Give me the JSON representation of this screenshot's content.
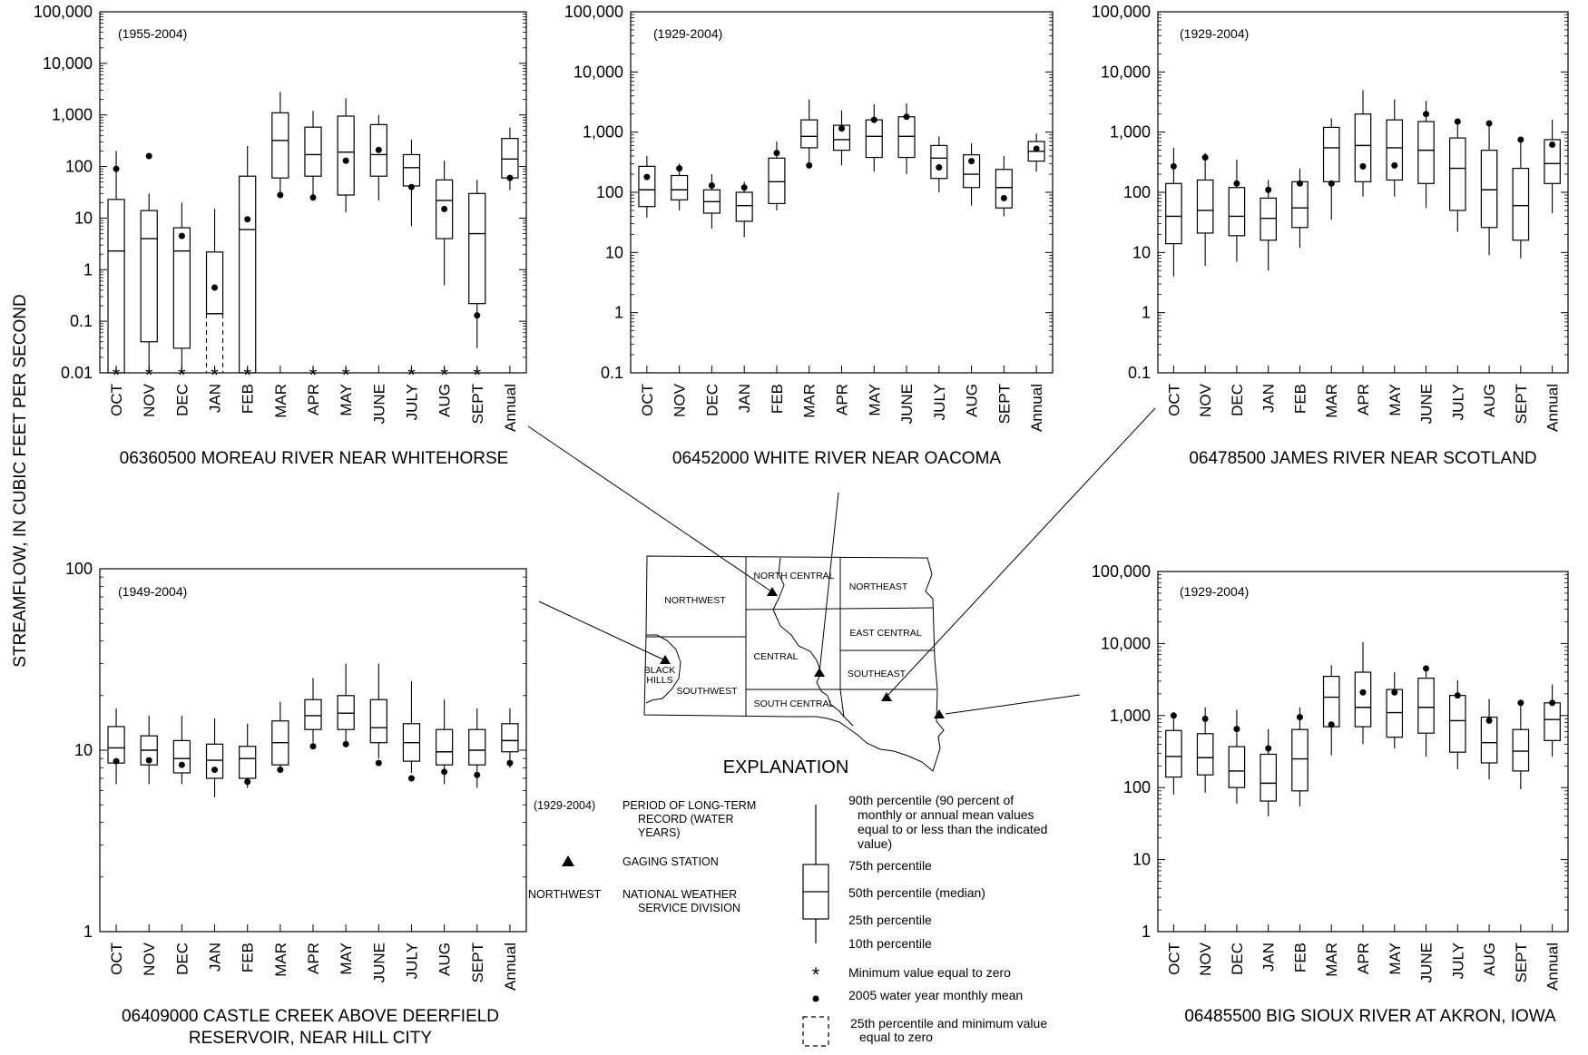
{
  "figure": {
    "y_axis_label": "STREAMFLOW, IN CUBIC FEET PER SECOND",
    "month_labels": [
      "OCT",
      "NOV",
      "DEC",
      "JAN",
      "FEB",
      "MAR",
      "APR",
      "MAY",
      "JUNE",
      "JULY",
      "AUG",
      "SEPT",
      "Annual"
    ]
  },
  "chart_data": [
    {
      "type": "box",
      "id": "moreau",
      "title": "06360500 MOREAU RIVER NEAR WHITEHORSE",
      "period": "(1955-2004)",
      "yscale": "log",
      "ylim": [
        0.01,
        100000
      ],
      "yticks": [
        0.01,
        0.1,
        1,
        10,
        100,
        1000,
        10000,
        100000
      ],
      "ytick_labels": [
        "0.01",
        "0.1",
        "1",
        "10",
        "100",
        "1,000",
        "10,000",
        "100,000"
      ],
      "boxes": [
        {
          "label": "OCT",
          "p10": 0.01,
          "p25": 0.01,
          "p50": 2.3,
          "p75": 23,
          "p90": 200,
          "wy2005": 90,
          "min_zero": true
        },
        {
          "label": "NOV",
          "p10": 0.01,
          "p25": 0.04,
          "p50": 4,
          "p75": 14,
          "p90": 30,
          "wy2005": 160,
          "min_zero": true
        },
        {
          "label": "DEC",
          "p10": 0.01,
          "p25": 0.03,
          "p50": 2.3,
          "p75": 6.5,
          "p90": 20,
          "wy2005": 4.5,
          "min_zero": true
        },
        {
          "label": "JAN",
          "p10": 0.01,
          "p25": 0.01,
          "p50": 0.14,
          "p75": 2.2,
          "p90": 15,
          "wy2005": 0.45,
          "min_zero": true,
          "dashed_lower": true
        },
        {
          "label": "FEB",
          "p10": 0.01,
          "p25": 0.01,
          "p50": 6,
          "p75": 65,
          "p90": 250,
          "wy2005": 9.5,
          "min_zero": true
        },
        {
          "label": "MAR",
          "p10": 25,
          "p25": 60,
          "p50": 320,
          "p75": 1100,
          "p90": 2800,
          "wy2005": 28,
          "min_zero": false
        },
        {
          "label": "APR",
          "p10": 25,
          "p25": 65,
          "p50": 170,
          "p75": 580,
          "p90": 1200,
          "wy2005": 25,
          "min_zero": true
        },
        {
          "label": "MAY",
          "p10": 13,
          "p25": 28,
          "p50": 190,
          "p75": 950,
          "p90": 2100,
          "wy2005": 130,
          "min_zero": true
        },
        {
          "label": "JUNE",
          "p10": 22,
          "p25": 65,
          "p50": 170,
          "p75": 650,
          "p90": 1000,
          "wy2005": 210,
          "min_zero": false
        },
        {
          "label": "JULY",
          "p10": 7,
          "p25": 42,
          "p50": 95,
          "p75": 170,
          "p90": 330,
          "wy2005": 40,
          "min_zero": true
        },
        {
          "label": "AUG",
          "p10": 0.5,
          "p25": 4,
          "p50": 22,
          "p75": 55,
          "p90": 130,
          "wy2005": 15,
          "min_zero": true
        },
        {
          "label": "SEPT",
          "p10": 0.03,
          "p25": 0.22,
          "p50": 5,
          "p75": 30,
          "p90": 55,
          "wy2005": 0.13,
          "min_zero": true
        },
        {
          "label": "Annual",
          "p10": 35,
          "p25": 60,
          "p50": 140,
          "p75": 350,
          "p90": 570,
          "wy2005": 60,
          "min_zero": false
        }
      ]
    },
    {
      "type": "box",
      "id": "white",
      "title": "06452000 WHITE RIVER NEAR OACOMA",
      "period": "(1929-2004)",
      "yscale": "log",
      "ylim": [
        0.1,
        100000
      ],
      "yticks": [
        0.1,
        1,
        10,
        100,
        1000,
        10000,
        100000
      ],
      "ytick_labels": [
        "0.1",
        "1",
        "10",
        "100",
        "1,000",
        "10,000",
        "100,000"
      ],
      "boxes": [
        {
          "label": "OCT",
          "p10": 38,
          "p25": 58,
          "p50": 110,
          "p75": 270,
          "p90": 400,
          "wy2005": 180
        },
        {
          "label": "NOV",
          "p10": 50,
          "p25": 75,
          "p50": 110,
          "p75": 190,
          "p90": 300,
          "wy2005": 250
        },
        {
          "label": "DEC",
          "p10": 25,
          "p25": 45,
          "p50": 70,
          "p75": 110,
          "p90": 200,
          "wy2005": 130
        },
        {
          "label": "JAN",
          "p10": 18,
          "p25": 33,
          "p50": 60,
          "p75": 100,
          "p90": 150,
          "wy2005": 120
        },
        {
          "label": "FEB",
          "p10": 50,
          "p25": 65,
          "p50": 150,
          "p75": 370,
          "p90": 700,
          "wy2005": 450
        },
        {
          "label": "MAR",
          "p10": 280,
          "p25": 550,
          "p50": 850,
          "p75": 1600,
          "p90": 3500,
          "wy2005": 280
        },
        {
          "label": "APR",
          "p10": 280,
          "p25": 500,
          "p50": 750,
          "p75": 1300,
          "p90": 2300,
          "wy2005": 1150
        },
        {
          "label": "MAY",
          "p10": 220,
          "p25": 380,
          "p50": 850,
          "p75": 1600,
          "p90": 2900,
          "wy2005": 1600
        },
        {
          "label": "JUNE",
          "p10": 200,
          "p25": 380,
          "p50": 850,
          "p75": 1800,
          "p90": 3000,
          "wy2005": 1800
        },
        {
          "label": "JULY",
          "p10": 100,
          "p25": 170,
          "p50": 370,
          "p75": 600,
          "p90": 850,
          "wy2005": 260
        },
        {
          "label": "AUG",
          "p10": 60,
          "p25": 120,
          "p50": 200,
          "p75": 420,
          "p90": 650,
          "wy2005": 330
        },
        {
          "label": "SEPT",
          "p10": 40,
          "p25": 55,
          "p50": 120,
          "p75": 240,
          "p90": 400,
          "wy2005": 80
        },
        {
          "label": "Annual",
          "p10": 220,
          "p25": 330,
          "p50": 480,
          "p75": 700,
          "p90": 950,
          "wy2005": 530
        }
      ]
    },
    {
      "type": "box",
      "id": "james",
      "title": "06478500 JAMES RIVER NEAR SCOTLAND",
      "period": "(1929-2004)",
      "yscale": "log",
      "ylim": [
        0.1,
        100000
      ],
      "yticks": [
        0.1,
        1,
        10,
        100,
        1000,
        10000,
        100000
      ],
      "ytick_labels": [
        "0.1",
        "1",
        "10",
        "100",
        "1,000",
        "10,000",
        "100,000"
      ],
      "boxes": [
        {
          "label": "OCT",
          "p10": 4,
          "p25": 14,
          "p50": 40,
          "p75": 140,
          "p90": 550,
          "wy2005": 270
        },
        {
          "label": "NOV",
          "p10": 6,
          "p25": 21,
          "p50": 50,
          "p75": 160,
          "p90": 450,
          "wy2005": 380
        },
        {
          "label": "DEC",
          "p10": 7,
          "p25": 19,
          "p50": 40,
          "p75": 120,
          "p90": 350,
          "wy2005": 140
        },
        {
          "label": "JAN",
          "p10": 5,
          "p25": 16,
          "p50": 37,
          "p75": 80,
          "p90": 160,
          "wy2005": 110
        },
        {
          "label": "FEB",
          "p10": 12,
          "p25": 26,
          "p50": 55,
          "p75": 150,
          "p90": 250,
          "wy2005": 140
        },
        {
          "label": "MAR",
          "p10": 35,
          "p25": 150,
          "p50": 550,
          "p75": 1200,
          "p90": 1700,
          "wy2005": 140
        },
        {
          "label": "APR",
          "p10": 85,
          "p25": 150,
          "p50": 600,
          "p75": 2000,
          "p90": 5000,
          "wy2005": 270
        },
        {
          "label": "MAY",
          "p10": 85,
          "p25": 160,
          "p50": 550,
          "p75": 1600,
          "p90": 3500,
          "wy2005": 280
        },
        {
          "label": "JUNE",
          "p10": 55,
          "p25": 140,
          "p50": 500,
          "p75": 1500,
          "p90": 3300,
          "wy2005": 2000
        },
        {
          "label": "JULY",
          "p10": 22,
          "p25": 50,
          "p50": 250,
          "p75": 800,
          "p90": 1500,
          "wy2005": 1500
        },
        {
          "label": "AUG",
          "p10": 9,
          "p25": 26,
          "p50": 110,
          "p75": 500,
          "p90": 1400,
          "wy2005": 1400
        },
        {
          "label": "SEPT",
          "p10": 8,
          "p25": 16,
          "p50": 60,
          "p75": 250,
          "p90": 750,
          "wy2005": 750
        },
        {
          "label": "Annual",
          "p10": 45,
          "p25": 140,
          "p50": 300,
          "p75": 750,
          "p90": 1600,
          "wy2005": 620
        }
      ]
    },
    {
      "type": "box",
      "id": "castle",
      "title": "06409000 CASTLE CREEK ABOVE DEERFIELD",
      "title_line2": "RESERVOIR, NEAR HILL CITY",
      "period": "(1949-2004)",
      "yscale": "log",
      "ylim": [
        1,
        100
      ],
      "yticks": [
        1,
        10,
        100
      ],
      "ytick_labels": [
        "1",
        "10",
        "100"
      ],
      "boxes": [
        {
          "label": "OCT",
          "p10": 6.5,
          "p25": 8.5,
          "p50": 10.3,
          "p75": 13.5,
          "p90": 17,
          "wy2005": 8.7
        },
        {
          "label": "NOV",
          "p10": 6.5,
          "p25": 8.3,
          "p50": 10,
          "p75": 12,
          "p90": 15.5,
          "wy2005": 8.8
        },
        {
          "label": "DEC",
          "p10": 6.5,
          "p25": 7.5,
          "p50": 9,
          "p75": 11.3,
          "p90": 15.5,
          "wy2005": 8.3
        },
        {
          "label": "JAN",
          "p10": 5.5,
          "p25": 7,
          "p50": 8.8,
          "p75": 10.8,
          "p90": 15,
          "wy2005": 7.8
        },
        {
          "label": "FEB",
          "p10": 6.2,
          "p25": 7,
          "p50": 9,
          "p75": 10.5,
          "p90": 14,
          "wy2005": 6.7
        },
        {
          "label": "MAR",
          "p10": 7.5,
          "p25": 8.3,
          "p50": 11,
          "p75": 14.5,
          "p90": 18.5,
          "wy2005": 7.8
        },
        {
          "label": "APR",
          "p10": 11,
          "p25": 13,
          "p50": 15.5,
          "p75": 19,
          "p90": 25,
          "wy2005": 10.5
        },
        {
          "label": "MAY",
          "p10": 11,
          "p25": 13,
          "p50": 16,
          "p75": 20,
          "p90": 30,
          "wy2005": 10.8
        },
        {
          "label": "JUNE",
          "p10": 9,
          "p25": 11,
          "p50": 13.3,
          "p75": 19,
          "p90": 30,
          "wy2005": 8.5
        },
        {
          "label": "JULY",
          "p10": 7.5,
          "p25": 8.7,
          "p50": 11,
          "p75": 14,
          "p90": 24,
          "wy2005": 7
        },
        {
          "label": "AUG",
          "p10": 6.5,
          "p25": 8.3,
          "p50": 9.8,
          "p75": 13,
          "p90": 19,
          "wy2005": 7.6
        },
        {
          "label": "SEPT",
          "p10": 6.2,
          "p25": 8.3,
          "p50": 10,
          "p75": 13,
          "p90": 17,
          "wy2005": 7.3
        },
        {
          "label": "Annual",
          "p10": 8,
          "p25": 9.8,
          "p50": 11.3,
          "p75": 14,
          "p90": 17,
          "wy2005": 8.5
        }
      ]
    },
    {
      "type": "box",
      "id": "bigsioux",
      "title": "06485500 BIG SIOUX RIVER AT AKRON, IOWA",
      "period": "(1929-2004)",
      "yscale": "log",
      "ylim": [
        1,
        100000
      ],
      "yticks": [
        1,
        10,
        100,
        1000,
        10000,
        100000
      ],
      "ytick_labels": [
        "1",
        "10",
        "100",
        "1,000",
        "10,000",
        "100,000"
      ],
      "boxes": [
        {
          "label": "OCT",
          "p10": 80,
          "p25": 140,
          "p50": 270,
          "p75": 620,
          "p90": 1000,
          "wy2005": 1000
        },
        {
          "label": "NOV",
          "p10": 85,
          "p25": 150,
          "p50": 260,
          "p75": 560,
          "p90": 1300,
          "wy2005": 900
        },
        {
          "label": "DEC",
          "p10": 60,
          "p25": 100,
          "p50": 170,
          "p75": 370,
          "p90": 1200,
          "wy2005": 650
        },
        {
          "label": "JAN",
          "p10": 40,
          "p25": 65,
          "p50": 115,
          "p75": 290,
          "p90": 650,
          "wy2005": 350
        },
        {
          "label": "FEB",
          "p10": 55,
          "p25": 90,
          "p50": 250,
          "p75": 640,
          "p90": 1300,
          "wy2005": 950
        },
        {
          "label": "MAR",
          "p10": 280,
          "p25": 700,
          "p50": 1800,
          "p75": 3500,
          "p90": 5000,
          "wy2005": 750
        },
        {
          "label": "APR",
          "p10": 400,
          "p25": 700,
          "p50": 1300,
          "p75": 4000,
          "p90": 10500,
          "wy2005": 2100
        },
        {
          "label": "MAY",
          "p10": 350,
          "p25": 500,
          "p50": 1100,
          "p75": 2300,
          "p90": 4000,
          "wy2005": 2100
        },
        {
          "label": "JUNE",
          "p10": 270,
          "p25": 570,
          "p50": 1300,
          "p75": 3300,
          "p90": 4800,
          "wy2005": 4500
        },
        {
          "label": "JULY",
          "p10": 180,
          "p25": 310,
          "p50": 850,
          "p75": 1900,
          "p90": 3100,
          "wy2005": 1900
        },
        {
          "label": "AUG",
          "p10": 130,
          "p25": 220,
          "p50": 420,
          "p75": 950,
          "p90": 1700,
          "wy2005": 850
        },
        {
          "label": "SEPT",
          "p10": 95,
          "p25": 170,
          "p50": 320,
          "p75": 640,
          "p90": 1500,
          "wy2005": 1500
        },
        {
          "label": "Annual",
          "p10": 270,
          "p25": 450,
          "p50": 880,
          "p75": 1500,
          "p90": 2700,
          "wy2005": 1500
        }
      ]
    }
  ],
  "map": {
    "regions": [
      "NORTHWEST",
      "NORTH CENTRAL",
      "NORTHEAST",
      "EAST CENTRAL",
      "CENTRAL",
      "SOUTHWEST",
      "SOUTH CENTRAL",
      "SOUTHEAST"
    ],
    "black_hills_line1": "BLACK",
    "black_hills_line2": "HILLS"
  },
  "explanation": {
    "title": "EXPLANATION",
    "period_sample": "(1929-2004)",
    "period_desc_1": "PERIOD OF LONG-TERM",
    "period_desc_2": "RECORD (WATER",
    "period_desc_3": "YEARS)",
    "gaging_station": "GAGING STATION",
    "division_sample": "NORTHWEST",
    "division_desc_1": "NATIONAL WEATHER",
    "division_desc_2": "SERVICE DIVISION",
    "p90_1": "90th percentile (90 percent of",
    "p90_2": "monthly or annual mean values",
    "p90_3": "equal to or less than the indicated",
    "p90_4": "value)",
    "p75": "75th percentile",
    "p50": "50th percentile (median)",
    "p25": "25th percentile",
    "p10": "10th percentile",
    "min_zero": "Minimum value equal to zero",
    "wy2005": "2005 water year monthly mean",
    "dashed_1": "25th percentile and minimum value",
    "dashed_2": "equal to zero"
  }
}
